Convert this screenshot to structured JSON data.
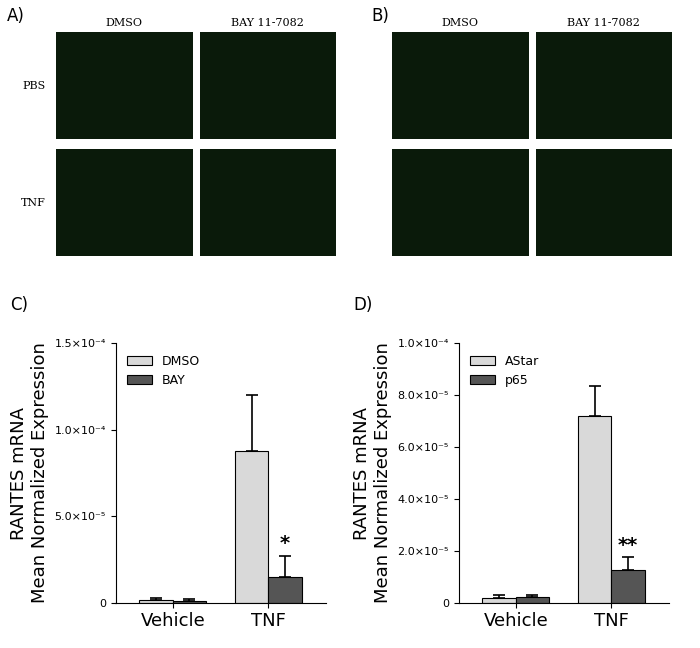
{
  "image_panels": [
    {
      "label": "A)",
      "columns": [
        "DMSO",
        "BAY 11-7082"
      ],
      "rows": [
        "PBS",
        "TNF"
      ]
    },
    {
      "label": "B)",
      "columns": [
        "DMSO",
        "BAY 11-7082"
      ]
    }
  ],
  "chart_data": [
    {
      "type": "bar",
      "panel_label": "C)",
      "ylabel": "RANTES mRNA\nMean Normalized Expression",
      "categories": [
        "Vehicle",
        "TNF"
      ],
      "series": [
        {
          "name": "DMSO",
          "color": "#d9d9d9",
          "values": [
            1.5e-06,
            8.8e-05
          ],
          "errors": [
            1e-06,
            3.2e-05
          ]
        },
        {
          "name": "BAY",
          "color": "#555555",
          "values": [
            1.2e-06,
            1.5e-05
          ],
          "errors": [
            1e-06,
            1.2e-05
          ]
        }
      ],
      "ylim": [
        0,
        0.00015
      ],
      "yticks": [
        0,
        {
          "value": 5e-05,
          "label": "5.0×10⁻⁵"
        },
        {
          "value": 0.0001,
          "label": "1.0×10⁻⁴"
        },
        {
          "value": 0.00015,
          "label": "1.5×10⁻⁴"
        }
      ],
      "legend": "upper left",
      "annotations": [
        {
          "text": "*",
          "category": "TNF",
          "series": "BAY"
        }
      ]
    },
    {
      "type": "bar",
      "panel_label": "D)",
      "ylabel": "RANTES mRNA\nMean Normalized Expression",
      "categories": [
        "Vehicle",
        "TNF"
      ],
      "series": [
        {
          "name": "AStar",
          "color": "#d9d9d9",
          "values": [
            1.8e-06,
            7.2e-05
          ],
          "errors": [
            1e-06,
            1.15e-05
          ]
        },
        {
          "name": "p65",
          "color": "#555555",
          "values": [
            2e-06,
            1.25e-05
          ],
          "errors": [
            1e-06,
            5e-06
          ]
        }
      ],
      "ylim": [
        0,
        0.0001
      ],
      "yticks": [
        0,
        {
          "value": 2e-05,
          "label": "2.0×10⁻⁵"
        },
        {
          "value": 4e-05,
          "label": "4.0×10⁻⁵"
        },
        {
          "value": 6e-05,
          "label": "6.0×10⁻⁵"
        },
        {
          "value": 8e-05,
          "label": "8.0×10⁻⁵"
        },
        {
          "value": 0.0001,
          "label": "1.0×10⁻⁴"
        }
      ],
      "legend": "upper left",
      "annotations": [
        {
          "text": "**",
          "category": "TNF",
          "series": "p65"
        }
      ]
    }
  ]
}
